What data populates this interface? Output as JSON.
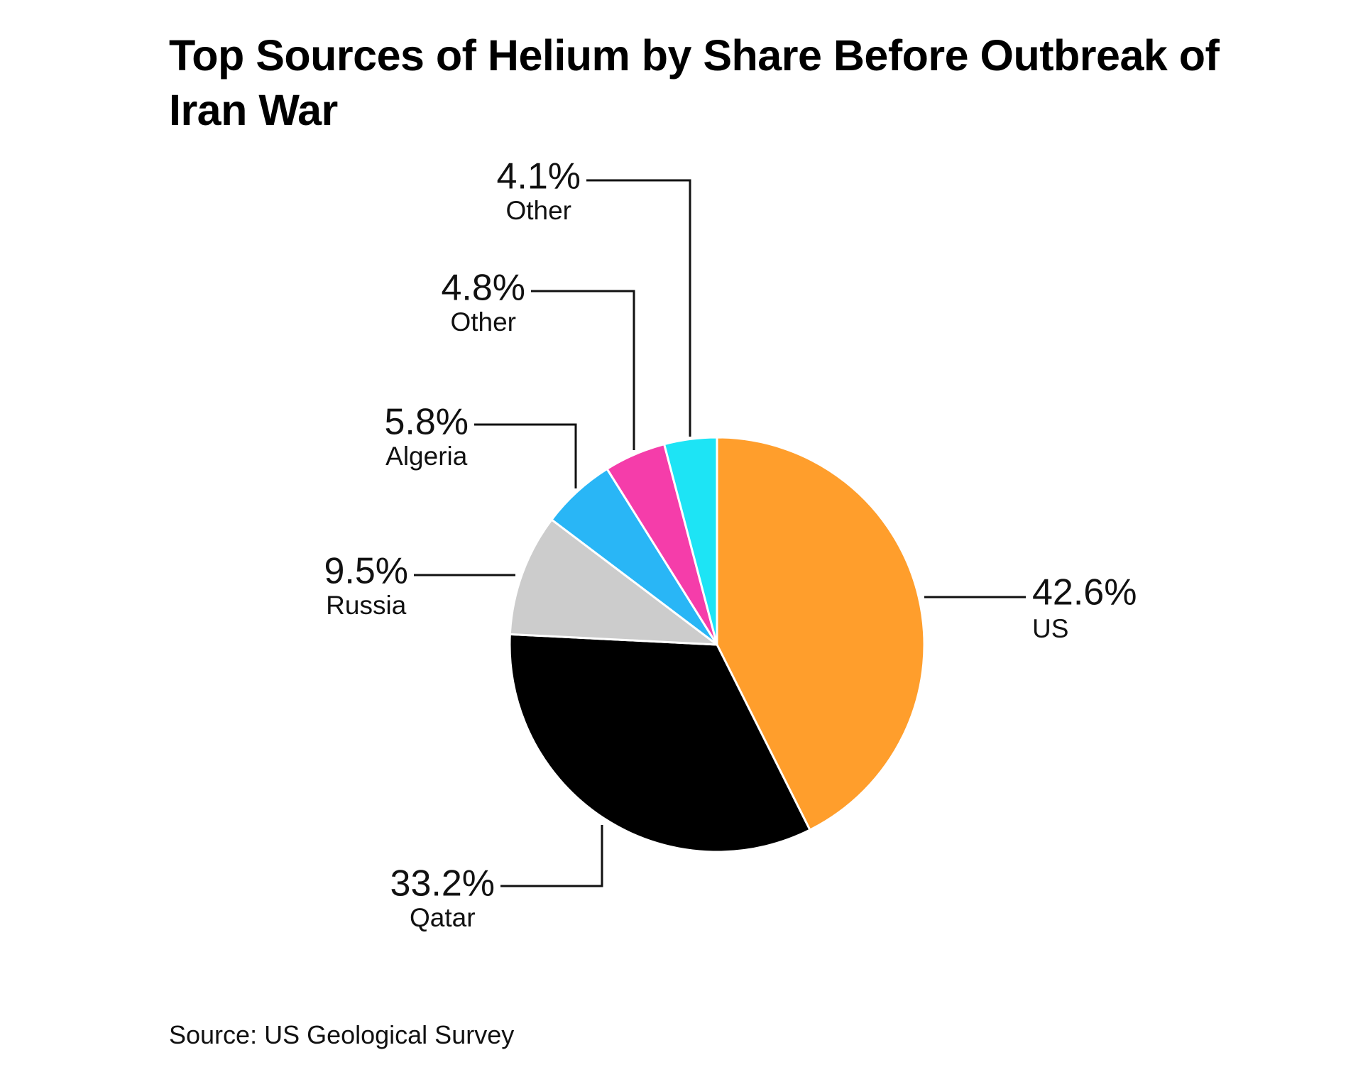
{
  "chart_data": {
    "type": "pie",
    "title": "Top Sources of Helium by Share Before Outbreak of Iran War",
    "unit": "%",
    "slices": [
      {
        "label": "US",
        "value": 42.6,
        "value_label": "42.6%",
        "color": "#FF9E2C"
      },
      {
        "label": "Qatar",
        "value": 33.2,
        "value_label": "33.2%",
        "color": "#000000"
      },
      {
        "label": "Russia",
        "value": 9.5,
        "value_label": "9.5%",
        "color": "#CCCCCC"
      },
      {
        "label": "Algeria",
        "value": 5.8,
        "value_label": "5.8%",
        "color": "#29B6F6"
      },
      {
        "label": "Other",
        "value": 4.8,
        "value_label": "4.8%",
        "color": "#F53DAA"
      },
      {
        "label": "Other",
        "value": 4.1,
        "value_label": "4.1%",
        "color": "#1DE4F5"
      }
    ],
    "source": "Source: US Geological Survey"
  }
}
